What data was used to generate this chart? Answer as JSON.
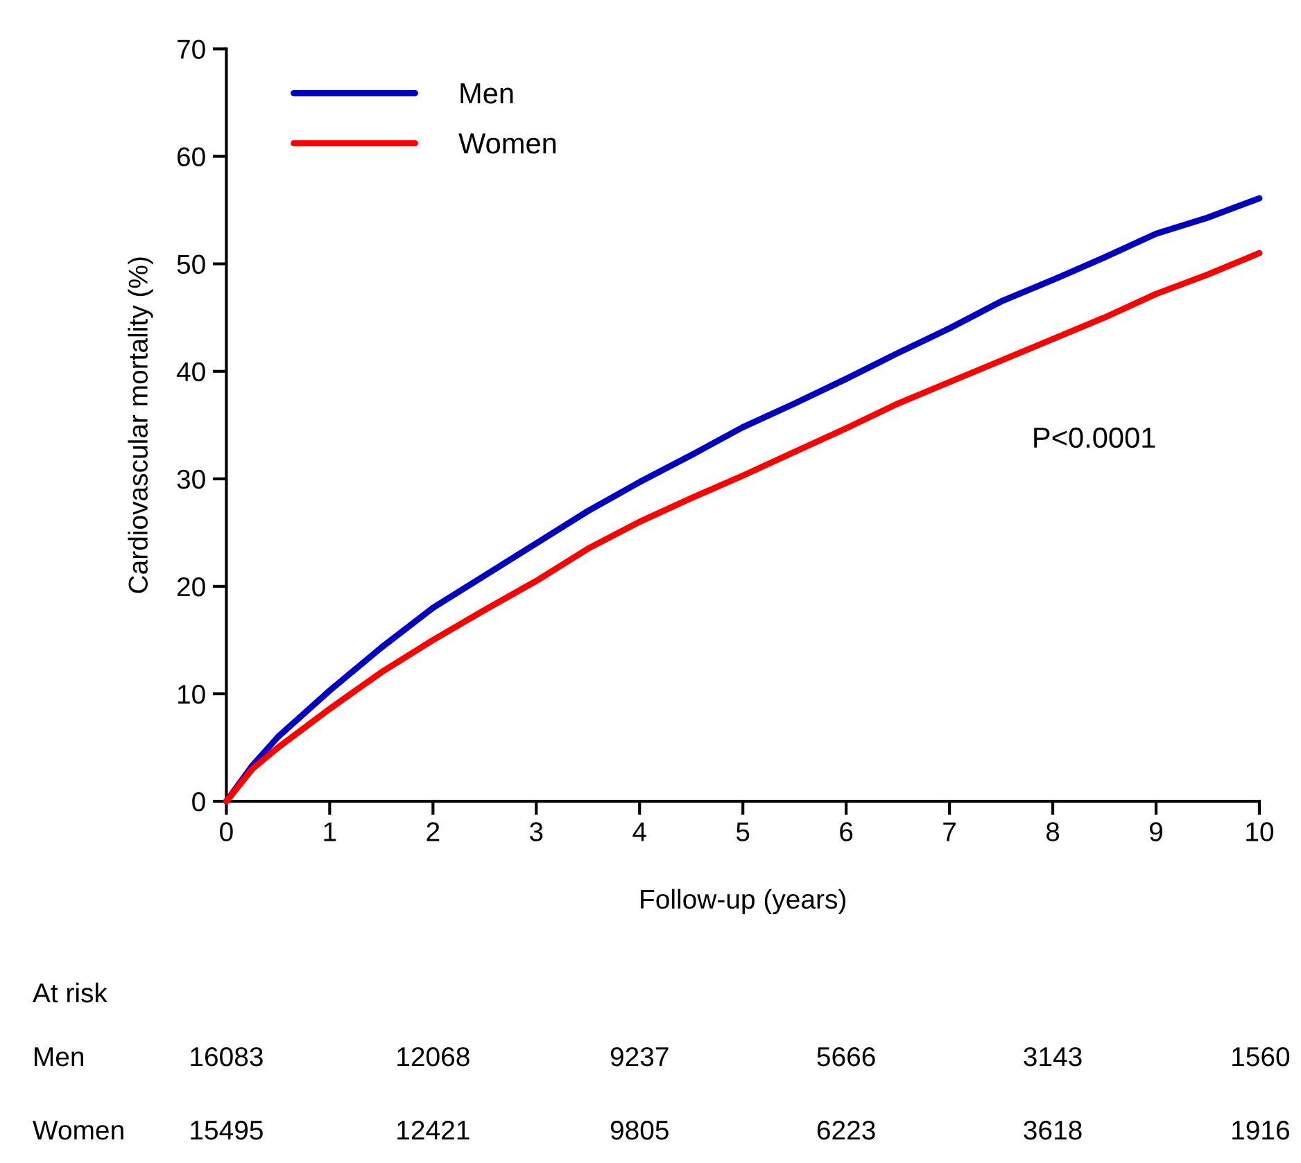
{
  "chart_data": {
    "type": "line",
    "xlabel": "Follow-up (years)",
    "ylabel": "Cardiovascular mortality (%)",
    "x": [
      0,
      0.25,
      0.5,
      1,
      1.5,
      2,
      2.5,
      3,
      3.5,
      4,
      4.5,
      5,
      5.5,
      6,
      6.5,
      7,
      7.5,
      8,
      8.5,
      9,
      9.5,
      10
    ],
    "series": [
      {
        "name": "Men",
        "color": "#0000c0",
        "values": [
          0,
          3.3,
          6,
          10.3,
          14.3,
          18,
          21,
          24,
          27,
          29.7,
          32.2,
          34.8,
          37,
          39.3,
          41.7,
          44,
          46.5,
          48.5,
          50.6,
          52.8,
          54.3,
          56.1
        ]
      },
      {
        "name": "Women",
        "color": "#ff0000",
        "values": [
          0,
          3,
          5,
          8.6,
          12,
          15,
          17.8,
          20.5,
          23.5,
          26,
          28.2,
          30.3,
          32.5,
          34.7,
          37,
          39,
          41,
          43,
          45,
          47.2,
          49,
          51
        ]
      }
    ],
    "xlim": [
      0,
      10
    ],
    "xticks": [
      0,
      1,
      2,
      3,
      4,
      5,
      6,
      7,
      8,
      9,
      10
    ],
    "ylim": [
      0,
      70
    ],
    "yticks": [
      0,
      10,
      20,
      30,
      40,
      50,
      60,
      70
    ],
    "grid": false,
    "legend": "top left",
    "marker": "none",
    "line_style": "solid",
    "annotations": [
      "P<0.0001",
      "At risk",
      "Men",
      "16083",
      "12068",
      "9237",
      "5666",
      "3143",
      "1560",
      "Women",
      "15495",
      "12421",
      "9805",
      "6223",
      "3618",
      "1916"
    ]
  }
}
